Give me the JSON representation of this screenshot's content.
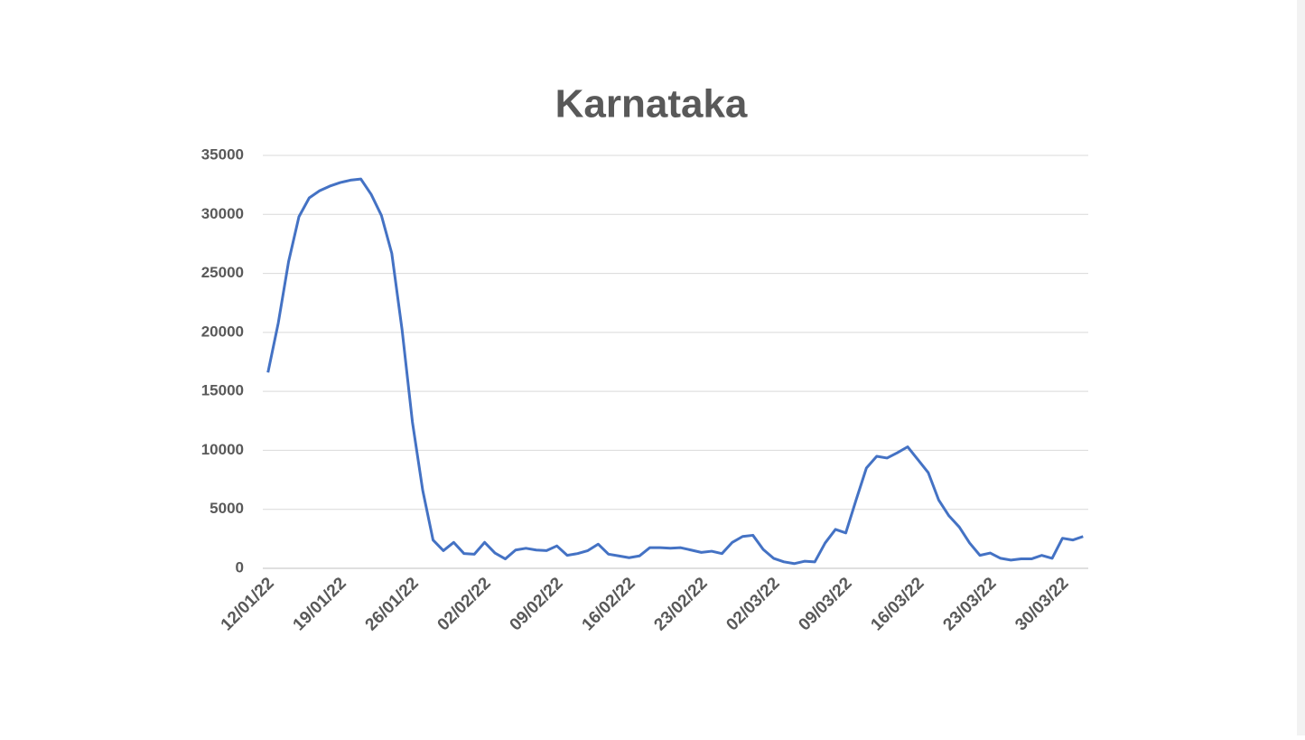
{
  "chart_data": {
    "type": "line",
    "title": "Karnataka",
    "categories": [
      "12/01/22",
      null,
      null,
      null,
      null,
      null,
      null,
      "19/01/22",
      null,
      null,
      null,
      null,
      null,
      null,
      "26/01/22",
      null,
      null,
      null,
      null,
      null,
      null,
      "02/02/22",
      null,
      null,
      null,
      null,
      null,
      null,
      "09/02/22",
      null,
      null,
      null,
      null,
      null,
      null,
      "16/02/22",
      null,
      null,
      null,
      null,
      null,
      null,
      "23/02/22",
      null,
      null,
      null,
      null,
      null,
      null,
      "02/03/22",
      null,
      null,
      null,
      null,
      null,
      null,
      "09/03/22",
      null,
      null,
      null,
      null,
      null,
      null,
      "16/03/22",
      null,
      null,
      null,
      null,
      null,
      null,
      "23/03/22",
      null,
      null,
      null,
      null,
      null,
      null,
      "30/03/22",
      null,
      null
    ],
    "series": [
      {
        "color": "#4472c4",
        "values": [
          16600,
          20800,
          26000,
          29800,
          31400,
          32000,
          32400,
          32700,
          32900,
          33000,
          31700,
          29900,
          26700,
          20200,
          12400,
          6600,
          2400,
          1500,
          2200,
          1250,
          1200,
          2200,
          1300,
          800,
          1550,
          1700,
          1550,
          1500,
          1900,
          1100,
          1250,
          1500,
          2050,
          1200,
          1050,
          900,
          1050,
          1750,
          1750,
          1700,
          1750,
          1550,
          1350,
          1450,
          1250,
          2200,
          2700,
          2800,
          1600,
          850,
          550,
          400,
          600,
          550,
          2150,
          3300,
          3000,
          5800,
          8500,
          9500,
          9350,
          9800,
          10300,
          9200,
          8100,
          5800,
          4450,
          3500,
          2150,
          1100,
          1300,
          850,
          700,
          800,
          800,
          1100,
          850,
          2550,
          2400,
          2700
        ]
      }
    ],
    "ylim": [
      0,
      35000
    ],
    "yticks": [
      0,
      5000,
      10000,
      15000,
      20000,
      25000,
      30000,
      35000
    ],
    "grid": true
  }
}
